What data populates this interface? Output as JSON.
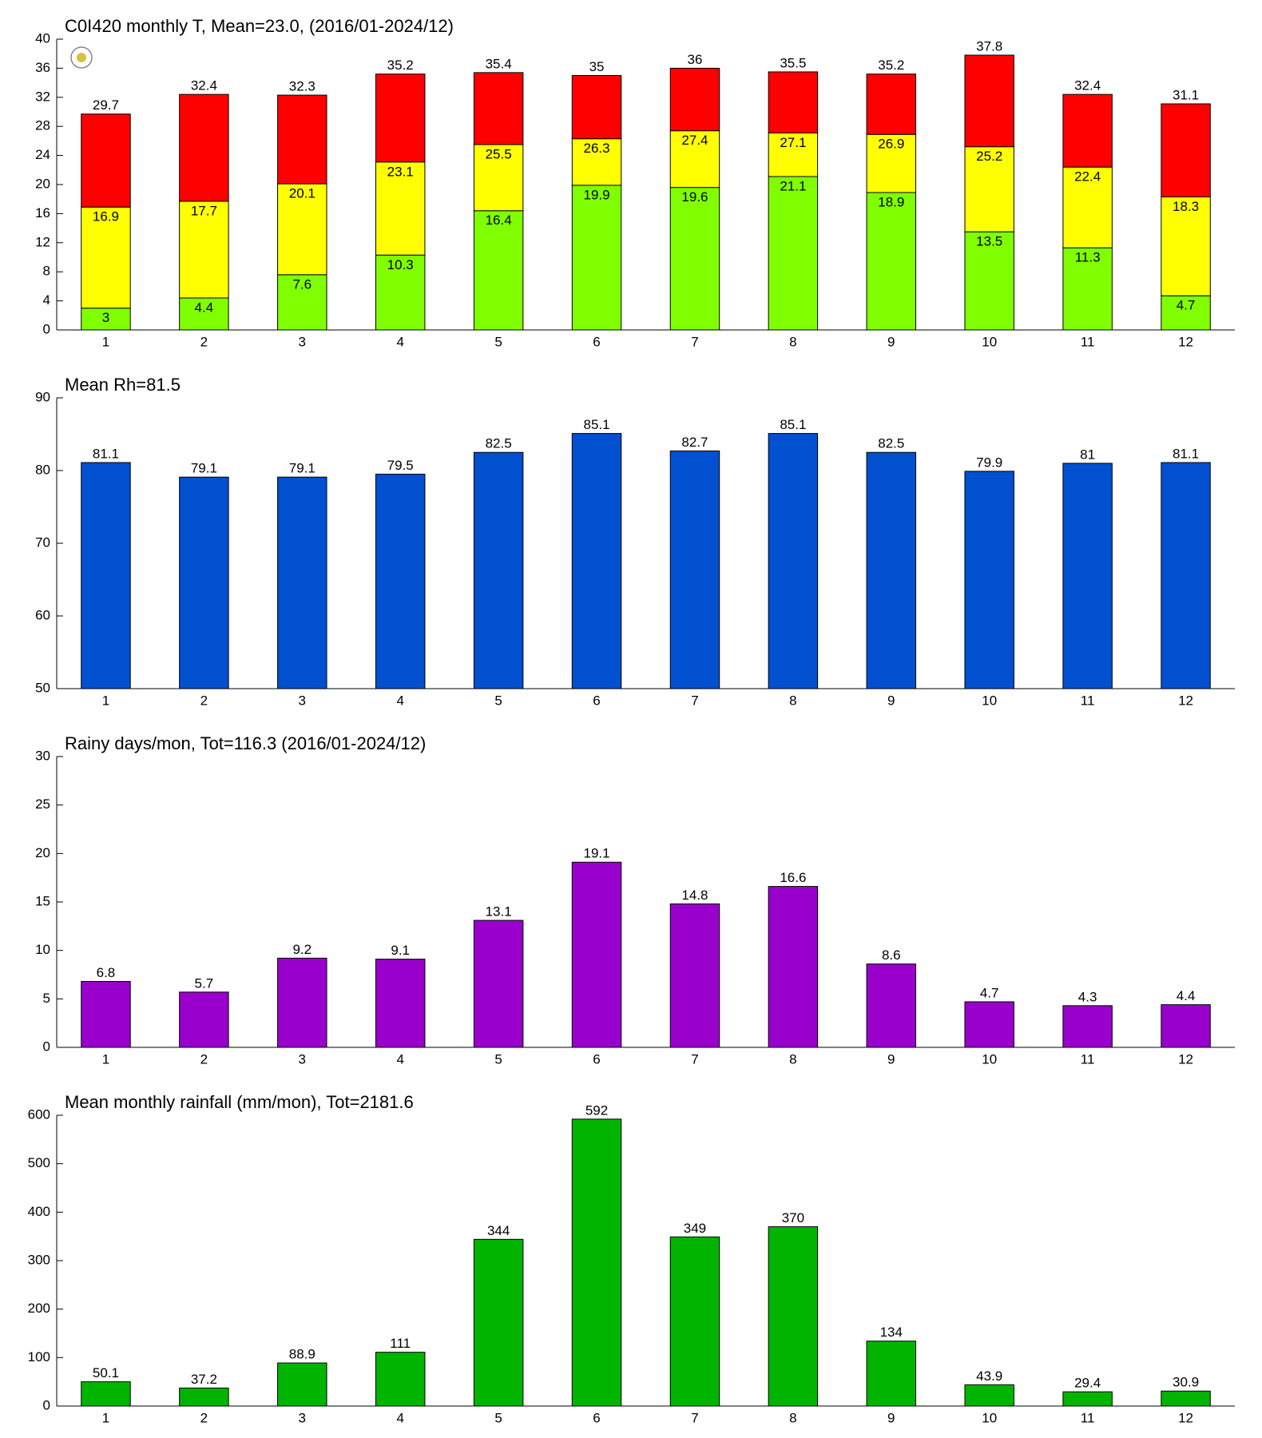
{
  "chart_data": [
    {
      "type": "range_bar",
      "title": "C0I420 monthly T, Mean=23.0, (2016/01-2024/12)",
      "categories": [
        "1",
        "2",
        "3",
        "4",
        "5",
        "6",
        "7",
        "8",
        "9",
        "10",
        "11",
        "12"
      ],
      "series": [
        {
          "color": "#80ff00",
          "values": [
            3,
            4.4,
            7.6,
            10.3,
            16.4,
            19.9,
            19.6,
            21.1,
            18.9,
            13.5,
            11.3,
            4.7
          ]
        },
        {
          "color": "#ffff00",
          "values": [
            16.9,
            17.7,
            20.1,
            23.1,
            25.5,
            26.3,
            27.4,
            27.1,
            26.9,
            25.2,
            22.4,
            18.3
          ]
        },
        {
          "color": "#ff0000",
          "values": [
            29.7,
            32.4,
            32.3,
            35.2,
            35.4,
            35,
            36,
            35.5,
            35.2,
            37.8,
            32.4,
            31.1
          ]
        }
      ],
      "ylim": [
        0,
        40
      ],
      "yticks": [
        0,
        4,
        8,
        12,
        16,
        20,
        24,
        28,
        32,
        36,
        40
      ]
    },
    {
      "type": "bar",
      "title": "Mean Rh=81.5",
      "categories": [
        "1",
        "2",
        "3",
        "4",
        "5",
        "6",
        "7",
        "8",
        "9",
        "10",
        "11",
        "12"
      ],
      "values": [
        81.1,
        79.1,
        79.1,
        79.5,
        82.5,
        85.1,
        82.7,
        85.1,
        82.5,
        79.9,
        81,
        81.1
      ],
      "color": "#0050d0",
      "ylim": [
        50,
        90
      ],
      "yticks": [
        50,
        60,
        70,
        80,
        90
      ]
    },
    {
      "type": "bar",
      "title": "Rainy days/mon, Tot=116.3 (2016/01-2024/12)",
      "categories": [
        "1",
        "2",
        "3",
        "4",
        "5",
        "6",
        "7",
        "8",
        "9",
        "10",
        "11",
        "12"
      ],
      "values": [
        6.8,
        5.7,
        9.2,
        9.1,
        13.1,
        19.1,
        14.8,
        16.6,
        8.6,
        4.7,
        4.3,
        4.4
      ],
      "color": "#9900cc",
      "ylim": [
        0,
        30
      ],
      "yticks": [
        0,
        5,
        10,
        15,
        20,
        25,
        30
      ]
    },
    {
      "type": "bar",
      "title": "Mean monthly rainfall (mm/mon), Tot=2181.6",
      "categories": [
        "1",
        "2",
        "3",
        "4",
        "5",
        "6",
        "7",
        "8",
        "9",
        "10",
        "11",
        "12"
      ],
      "values": [
        50.1,
        37.2,
        88.9,
        111,
        344,
        592,
        349,
        370,
        134,
        43.9,
        29.4,
        30.9
      ],
      "color": "#00b400",
      "ylim": [
        0,
        600
      ],
      "yticks": [
        0,
        100,
        200,
        300,
        400,
        500,
        600
      ]
    }
  ]
}
